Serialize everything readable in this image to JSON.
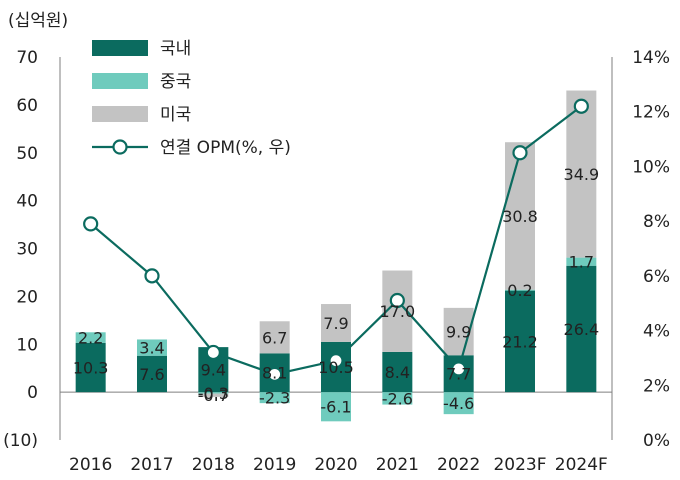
{
  "chart_data": {
    "type": "bar",
    "stacked": true,
    "y_unit_label": "(십억원)",
    "categories": [
      "2016",
      "2017",
      "2018",
      "2019",
      "2020",
      "2021",
      "2022",
      "2023F",
      "2024F"
    ],
    "series": [
      {
        "name": "국내",
        "color": "#0b6b5f",
        "values": [
          10.3,
          7.6,
          9.4,
          8.1,
          10.5,
          8.4,
          7.7,
          21.2,
          26.4
        ],
        "labels": [
          "10.3",
          "7.6",
          "9.4",
          "8.1",
          "10.5",
          "8.4",
          "7.7",
          "21.2",
          "26.4"
        ]
      },
      {
        "name": "중국",
        "color": "#6fcbbd",
        "values": [
          2.2,
          3.4,
          -0.3,
          -2.3,
          -6.1,
          -2.6,
          -4.6,
          0.2,
          1.7
        ],
        "labels": [
          "2.2",
          "3.4",
          "-0.3",
          "-2.3",
          "-6.1",
          "-2.6",
          "-4.6",
          "0.2",
          "1.7"
        ]
      },
      {
        "name": "미국",
        "color": "#c3c3c3",
        "values": [
          0,
          0,
          -0.7,
          6.7,
          7.9,
          17.0,
          9.9,
          30.8,
          34.9
        ],
        "labels": [
          "",
          "",
          "-0.7",
          "6.7",
          "7.9",
          "17.0",
          "9.9",
          "30.8",
          "34.9"
        ]
      }
    ],
    "line_series": {
      "name": "연결 OPM(%, 우)",
      "color": "#0b6b5f",
      "values": [
        7.9,
        6.0,
        3.2,
        2.4,
        2.9,
        5.1,
        2.6,
        10.5,
        12.2
      ]
    },
    "y_left": {
      "min": -10,
      "max": 70,
      "ticks": [
        "(10)",
        "0",
        "10",
        "20",
        "30",
        "40",
        "50",
        "60",
        "70"
      ]
    },
    "y_right": {
      "min": 0,
      "max": 14,
      "ticks": [
        "0%",
        "2%",
        "4%",
        "6%",
        "8%",
        "10%",
        "12%",
        "14%"
      ]
    },
    "grid": false,
    "legend_position": "top-left"
  }
}
